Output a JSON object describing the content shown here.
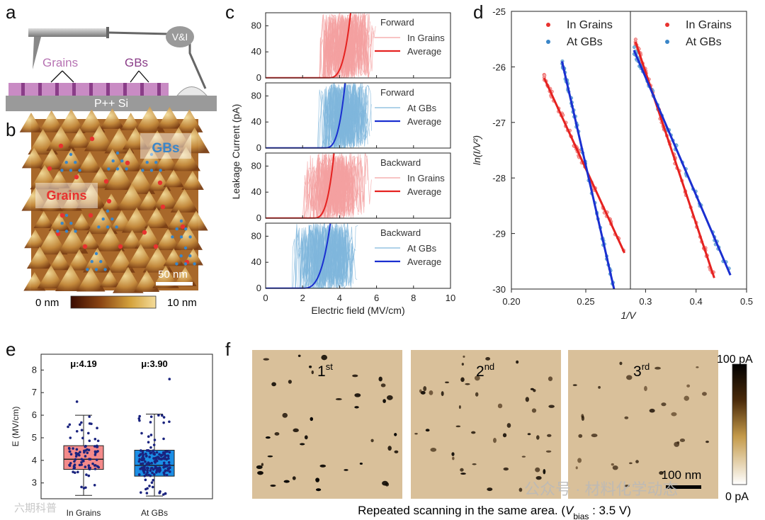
{
  "panels": {
    "a": "a",
    "b": "b",
    "c": "c",
    "d": "d",
    "e": "e",
    "f": "f"
  },
  "schematic": {
    "vi_label": "V&I",
    "grains_label": "Grains",
    "gbs_label": "GBs",
    "substrate_label": "P++ Si"
  },
  "afm": {
    "gbs_label": "GBs",
    "grains_label": "Grains",
    "scale_bar": "50 nm",
    "cbar_min": "0 nm",
    "cbar_max": "10 nm"
  },
  "colors": {
    "grains": "#e8322f",
    "gbs": "#3a86c8",
    "grains_light": "#f4a0a0",
    "gbs_light": "#7fb6dc",
    "grains_dark": "#e52220",
    "gbs_dark": "#1a2fd0",
    "navy": "#1a237e",
    "box_grains": "#f48a8a",
    "box_gbs": "#1a8ee6",
    "cmap_mid": "#c49a4a",
    "sample_bg": "#d9c09a"
  },
  "chart_data": [
    {
      "id": "c",
      "type": "line",
      "xlabel": "Electric field (MV/cm)",
      "ylabel": "Leakage Current (pA)",
      "xlim": [
        0,
        10
      ],
      "ylim": [
        0,
        100
      ],
      "xticks": [
        "0",
        "2",
        "4",
        "6",
        "8",
        "10"
      ],
      "yticks": [
        "0",
        "40",
        "80"
      ],
      "subplots": [
        {
          "title": "Forward",
          "series": [
            {
              "name": "In Grains",
              "type": "raw"
            },
            {
              "name": "Average",
              "type": "avg",
              "onset": 3.4,
              "steep": 4.6
            }
          ]
        },
        {
          "title": "Forward",
          "series": [
            {
              "name": "At GBs",
              "type": "raw"
            },
            {
              "name": "Average",
              "type": "avg",
              "onset": 3.2,
              "steep": 4.3
            }
          ]
        },
        {
          "title": "Backward",
          "series": [
            {
              "name": "In Grains",
              "type": "raw"
            },
            {
              "name": "Average",
              "type": "avg",
              "onset": 2.6,
              "steep": 3.7
            }
          ]
        },
        {
          "title": "Backward",
          "series": [
            {
              "name": "At GBs",
              "type": "raw"
            },
            {
              "name": "Average",
              "type": "avg",
              "onset": 2.0,
              "steep": 3.5
            }
          ]
        }
      ]
    },
    {
      "id": "d",
      "type": "scatter",
      "xlabel": "1/V",
      "ylabel": "ln(I/V²)",
      "ylim": [
        -30,
        -25
      ],
      "yticks": [
        "-25",
        "-26",
        "-27",
        "-28",
        "-29",
        "-30"
      ],
      "subplots": [
        {
          "xlim": [
            0.2,
            0.28
          ],
          "xticks": [
            {
              "v": 0.2,
              "t": "0.20"
            },
            {
              "v": 0.25,
              "t": "0.25"
            }
          ],
          "series": [
            {
              "name": "In Grains",
              "fit": [
                [
                  0.222,
                  -26.2
                ],
                [
                  0.276,
                  -29.35
                ]
              ]
            },
            {
              "name": "At GBs",
              "fit": [
                [
                  0.234,
                  -25.9
                ],
                [
                  0.269,
                  -30.0
                ]
              ]
            }
          ]
        },
        {
          "xlim": [
            0.27,
            0.5
          ],
          "xticks": [
            {
              "v": 0.3,
              "t": "0.3"
            },
            {
              "v": 0.4,
              "t": "0.4"
            },
            {
              "v": 0.5,
              "t": "0.5"
            }
          ],
          "series": [
            {
              "name": "In Grains",
              "fit": [
                [
                  0.28,
                  -25.55
                ],
                [
                  0.436,
                  -29.8
                ]
              ]
            },
            {
              "name": "At GBs",
              "fit": [
                [
                  0.277,
                  -25.7
                ],
                [
                  0.468,
                  -29.75
                ]
              ]
            }
          ]
        }
      ]
    },
    {
      "id": "e",
      "type": "box",
      "ylabel": "E (MV/cm)",
      "ylim": [
        2.3,
        8.7
      ],
      "yticks": [
        "3",
        "4",
        "5",
        "6",
        "7",
        "8"
      ],
      "categories": [
        "In Grains",
        "At GBs"
      ],
      "boxes": [
        {
          "name": "In Grains",
          "mean_label": "μ:4.19",
          "whisker_low": 2.45,
          "q1": 3.6,
          "median": 4.05,
          "q3": 4.65,
          "whisker_high": 6.0
        },
        {
          "name": "At GBs",
          "mean_label": "μ:3.90",
          "whisker_low": 2.42,
          "q1": 3.3,
          "median": 3.78,
          "q3": 4.45,
          "whisker_high": 6.05
        }
      ]
    }
  ],
  "scan": {
    "labels": [
      {
        "n": "1",
        "sup": "st"
      },
      {
        "n": "2",
        "sup": "nd"
      },
      {
        "n": "3",
        "sup": "rd"
      }
    ],
    "scale_bar": "100 nm",
    "cbar_max": "100 pA",
    "cbar_min": "0 pA",
    "caption_pre": "Repeated scanning in the same area. (",
    "caption_v": "V",
    "caption_sub": "bias",
    "caption_post": " : 3.5 V)"
  },
  "watermark": {
    "left": "六期科普",
    "right": "公众号 · 材料化学动态"
  }
}
